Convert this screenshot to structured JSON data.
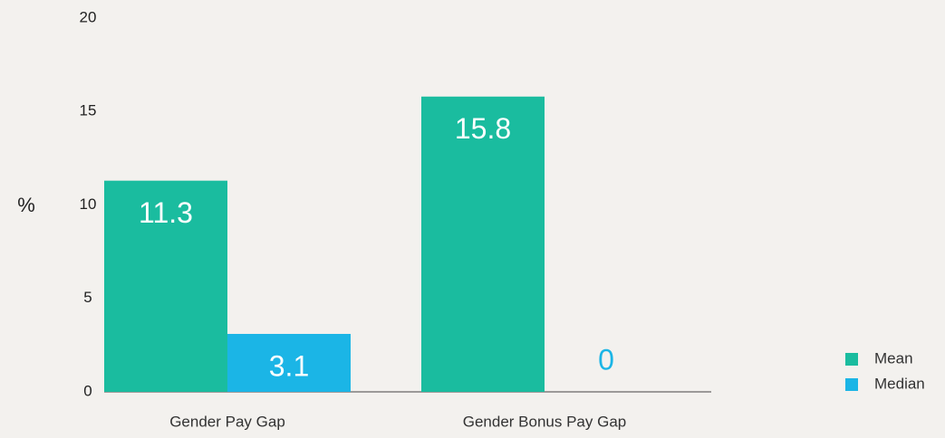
{
  "chart_data": {
    "type": "bar",
    "y_label": "%",
    "categories": [
      "Gender Pay Gap",
      "Gender Bonus Pay Gap"
    ],
    "series": [
      {
        "name": "Mean",
        "color": "#1abc9f",
        "values": [
          11.3,
          15.8
        ]
      },
      {
        "name": "Median",
        "color": "#1bb5e6",
        "values": [
          3.1,
          0
        ]
      }
    ],
    "ylim": [
      0,
      20
    ],
    "yticks": [
      0,
      5,
      10,
      15,
      20
    ],
    "grid": false,
    "legend": "right"
  }
}
